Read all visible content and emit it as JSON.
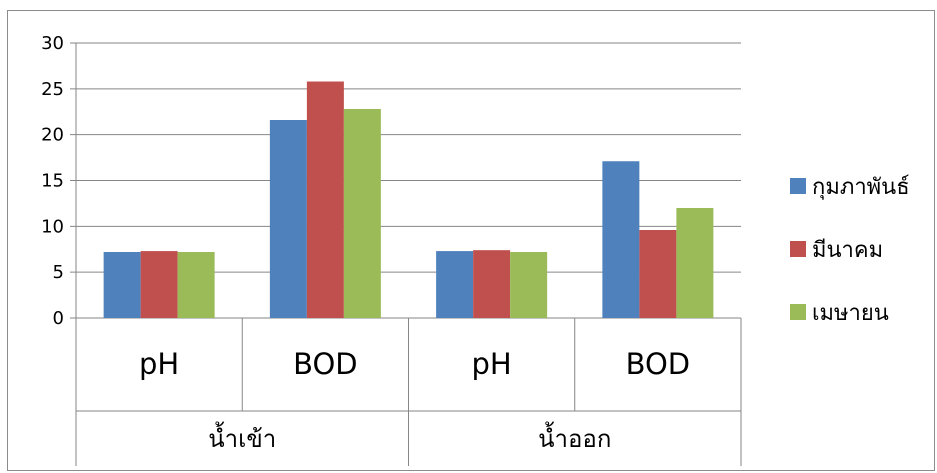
{
  "chart_data": {
    "type": "bar",
    "categories": [
      "pH",
      "BOD",
      "pH",
      "BOD"
    ],
    "groups": [
      {
        "label": "น้ำเข้า",
        "span": [
          0,
          1
        ]
      },
      {
        "label": "น้ำออก",
        "span": [
          2,
          3
        ]
      }
    ],
    "series": [
      {
        "name": "กุมภาพันธ์",
        "color": "#4f81bd",
        "values": [
          7.2,
          21.6,
          7.3,
          17.1
        ]
      },
      {
        "name": "มีนาคม",
        "color": "#c0504d",
        "values": [
          7.3,
          25.8,
          7.4,
          9.6
        ]
      },
      {
        "name": "เมษายน",
        "color": "#9bbb59",
        "values": [
          7.2,
          22.8,
          7.2,
          12.0
        ]
      }
    ],
    "ylim": [
      0,
      30
    ],
    "yticks": [
      0,
      5,
      10,
      15,
      20,
      25,
      30
    ],
    "grid": true,
    "legend": "right",
    "title": "",
    "xlabel": "",
    "ylabel": ""
  }
}
